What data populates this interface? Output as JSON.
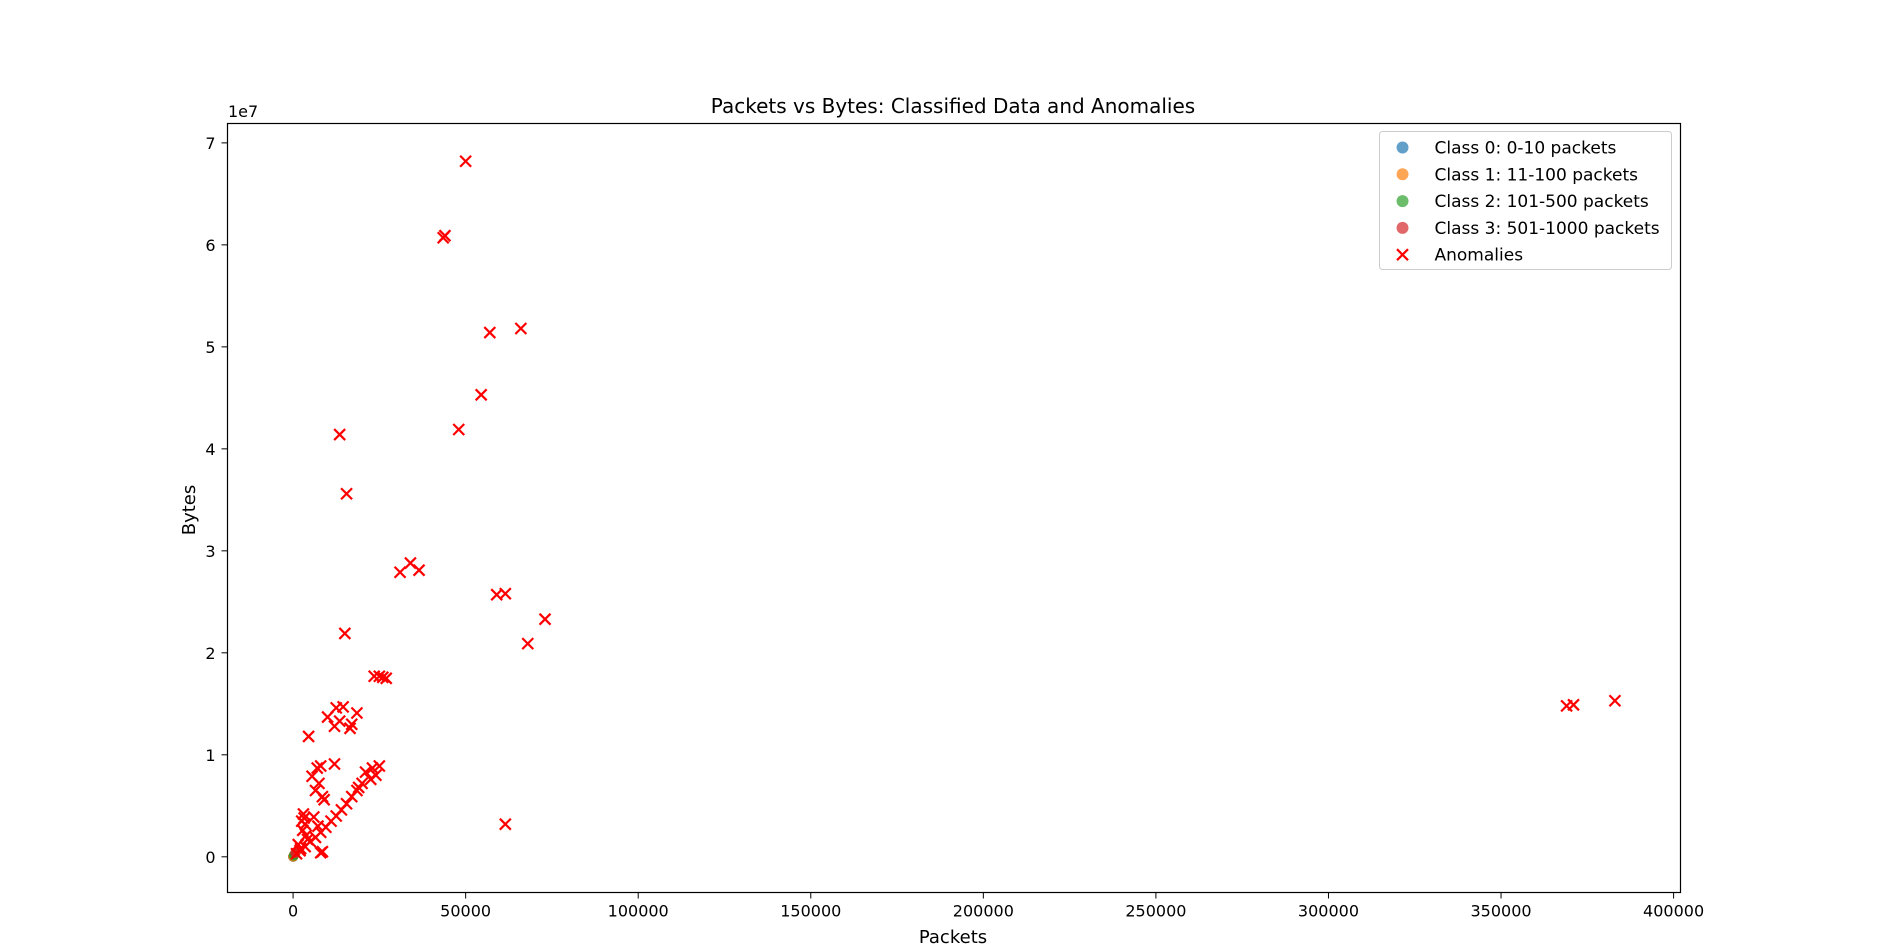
{
  "window": {
    "accent_color": "#c8452c"
  },
  "chart_data": {
    "type": "scatter",
    "title": "Packets vs Bytes: Classified Data and Anomalies",
    "xlabel": "Packets",
    "ylabel": "Bytes",
    "y_offset_label": "1e7",
    "xlim": [
      -19000,
      402000
    ],
    "ylim": [
      -3500000,
      71900000
    ],
    "y_scale_factor": 10000000,
    "x_ticks": [
      0,
      50000,
      100000,
      150000,
      200000,
      250000,
      300000,
      350000,
      400000
    ],
    "x_tick_labels": [
      "0",
      "50000",
      "100000",
      "150000",
      "200000",
      "250000",
      "300000",
      "350000",
      "400000"
    ],
    "y_ticks": [
      0,
      10000000,
      20000000,
      30000000,
      40000000,
      50000000,
      60000000,
      70000000
    ],
    "y_tick_labels": [
      "0",
      "1",
      "2",
      "3",
      "4",
      "5",
      "6",
      "7"
    ],
    "grid": false,
    "legend_position": "top-right",
    "legend": [
      {
        "label": "Class 0: 0-10 packets",
        "marker": "circle",
        "color": "#1f77b4"
      },
      {
        "label": "Class 1: 11-100 packets",
        "marker": "circle",
        "color": "#ff7f0e"
      },
      {
        "label": "Class 2: 101-500 packets",
        "marker": "circle",
        "color": "#2ca02c"
      },
      {
        "label": "Class 3: 501-1000 packets",
        "marker": "circle",
        "color": "#d62728"
      },
      {
        "label": "Anomalies",
        "marker": "x",
        "color": "#ff0000"
      }
    ],
    "series": [
      {
        "name": "Class 0: 0-10 packets",
        "marker": "circle",
        "color": "#1f77b4",
        "points": [
          [
            5,
            400
          ],
          [
            8,
            700
          ],
          [
            3,
            200
          ]
        ]
      },
      {
        "name": "Class 1: 11-100 packets",
        "marker": "circle",
        "color": "#ff7f0e",
        "points": [
          [
            50,
            20000
          ],
          [
            80,
            40000
          ],
          [
            30,
            10000
          ],
          [
            95,
            60000
          ]
        ]
      },
      {
        "name": "Class 2: 101-500 packets",
        "marker": "circle",
        "color": "#2ca02c",
        "points": [
          [
            200,
            100000
          ],
          [
            400,
            250000
          ],
          [
            300,
            180000
          ]
        ]
      },
      {
        "name": "Class 3: 501-1000 packets",
        "marker": "circle",
        "color": "#d62728",
        "points": [
          [
            600,
            350000
          ],
          [
            900,
            500000
          ],
          [
            750,
            420000
          ]
        ]
      },
      {
        "name": "Anomalies",
        "marker": "x",
        "color": "#ff0000",
        "points": [
          [
            50000,
            68200000
          ],
          [
            43500,
            60700000
          ],
          [
            44000,
            60900000
          ],
          [
            57000,
            51400000
          ],
          [
            66000,
            51800000
          ],
          [
            54500,
            45300000
          ],
          [
            48000,
            41900000
          ],
          [
            13500,
            41400000
          ],
          [
            15500,
            35600000
          ],
          [
            31000,
            27900000
          ],
          [
            34000,
            28800000
          ],
          [
            36500,
            28100000
          ],
          [
            59000,
            25700000
          ],
          [
            61500,
            25800000
          ],
          [
            73000,
            23300000
          ],
          [
            68000,
            20900000
          ],
          [
            15000,
            21900000
          ],
          [
            23500,
            17700000
          ],
          [
            25000,
            17700000
          ],
          [
            26000,
            17600000
          ],
          [
            27000,
            17500000
          ],
          [
            369000,
            14800000
          ],
          [
            371000,
            14900000
          ],
          [
            383000,
            15300000
          ],
          [
            12500,
            14600000
          ],
          [
            14500,
            14700000
          ],
          [
            18500,
            14100000
          ],
          [
            10000,
            13700000
          ],
          [
            13500,
            13300000
          ],
          [
            12000,
            12800000
          ],
          [
            16500,
            12600000
          ],
          [
            17000,
            13000000
          ],
          [
            4500,
            11800000
          ],
          [
            12000,
            9100000
          ],
          [
            7000,
            8700000
          ],
          [
            8000,
            8900000
          ],
          [
            23000,
            8700000
          ],
          [
            25000,
            8900000
          ],
          [
            21000,
            8300000
          ],
          [
            5500,
            7900000
          ],
          [
            7500,
            7200000
          ],
          [
            6500,
            6500000
          ],
          [
            8500,
            5900000
          ],
          [
            9000,
            5600000
          ],
          [
            20000,
            7200000
          ],
          [
            18500,
            6500000
          ],
          [
            17000,
            5900000
          ],
          [
            15500,
            5200000
          ],
          [
            14000,
            4600000
          ],
          [
            12500,
            4000000
          ],
          [
            11000,
            3500000
          ],
          [
            9500,
            2900000
          ],
          [
            8000,
            2400000
          ],
          [
            6500,
            1900000
          ],
          [
            5000,
            1500000
          ],
          [
            3500,
            1000000
          ],
          [
            2000,
            600000
          ],
          [
            1000,
            300000
          ],
          [
            24000,
            8000000
          ],
          [
            22500,
            7600000
          ],
          [
            19000,
            6800000
          ],
          [
            3000,
            4200000
          ],
          [
            3200,
            3800000
          ],
          [
            3500,
            3200000
          ],
          [
            2800,
            2600000
          ],
          [
            3800,
            2100000
          ],
          [
            4200,
            1700000
          ],
          [
            2500,
            3500000
          ],
          [
            6000,
            3900000
          ],
          [
            7200,
            3000000
          ],
          [
            1500,
            1200000
          ],
          [
            2200,
            800000
          ],
          [
            8500,
            500000
          ],
          [
            8000,
            400000
          ],
          [
            61500,
            3200000
          ]
        ]
      }
    ]
  }
}
